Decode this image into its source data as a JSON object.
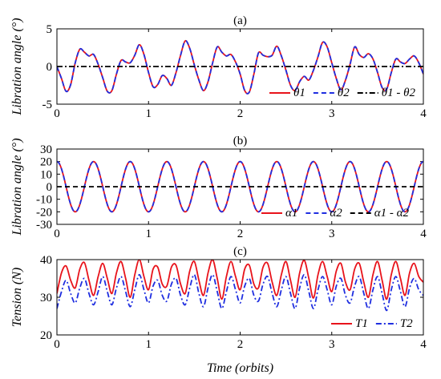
{
  "chart_data": [
    {
      "type": "line",
      "title": "(a)",
      "xlabel": "",
      "ylabel": "Libration angle (°)",
      "xlim": [
        0,
        4
      ],
      "ylim": [
        -5,
        5
      ],
      "xticks": [
        "0",
        "1",
        "2",
        "3",
        "4"
      ],
      "yticks": [
        "-5",
        "0",
        "5"
      ],
      "legend_position": "bottom-right",
      "series": [
        {
          "name": "θ1",
          "color": "#e8131b",
          "style": "solid",
          "x": [
            0,
            0.05,
            0.1,
            0.15,
            0.2,
            0.25,
            0.3,
            0.35,
            0.4,
            0.45,
            0.5,
            0.55,
            0.6,
            0.65,
            0.7,
            0.75,
            0.8,
            0.85,
            0.9,
            0.95,
            1.0,
            1.05,
            1.1,
            1.15,
            1.2,
            1.25,
            1.3,
            1.35,
            1.4,
            1.45,
            1.5,
            1.55,
            1.6,
            1.65,
            1.7,
            1.75,
            1.8,
            1.85,
            1.9,
            1.95,
            2.0,
            2.05,
            2.1,
            2.15,
            2.2,
            2.25,
            2.3,
            2.35,
            2.4,
            2.45,
            2.5,
            2.55,
            2.6,
            2.65,
            2.7,
            2.75,
            2.8,
            2.85,
            2.9,
            2.95,
            3.0,
            3.05,
            3.1,
            3.15,
            3.2,
            3.25,
            3.3,
            3.35,
            3.4,
            3.45,
            3.5,
            3.55,
            3.6,
            3.65,
            3.7,
            3.75,
            3.8,
            3.85,
            3.9,
            3.95,
            4.0
          ],
          "y": [
            0,
            -1.6,
            -3.3,
            -2.4,
            0.5,
            2.3,
            1.9,
            1.4,
            1.6,
            0.3,
            -1.5,
            -3.3,
            -3.2,
            -1.0,
            0.8,
            0.6,
            0.5,
            1.5,
            2.9,
            1.6,
            -0.8,
            -2.7,
            -2.4,
            -1.2,
            -1.6,
            -2.5,
            -0.8,
            1.5,
            3.4,
            2.4,
            0.2,
            -1.8,
            -3.2,
            -2.0,
            0.5,
            2.6,
            1.9,
            1.4,
            1.6,
            0.6,
            -1.0,
            -3.2,
            -3.4,
            -1.0,
            1.8,
            1.5,
            1.3,
            1.5,
            2.7,
            1.4,
            -0.5,
            -2.5,
            -3.2,
            -2.0,
            -1.3,
            -1.8,
            -0.5,
            1.3,
            3.2,
            2.6,
            0.5,
            -1.6,
            -3.1,
            -1.8,
            0.3,
            2.6,
            1.6,
            1.2,
            1.7,
            1.0,
            -0.8,
            -2.8,
            -3.0,
            -0.8,
            1.0,
            0.6,
            0.4,
            1.0,
            1.4,
            0.5,
            -1.0
          ]
        },
        {
          "name": "θ2",
          "color": "#1f2ee0",
          "style": "dashed",
          "same_values_as": "θ1"
        },
        {
          "name": "θ1 - θ2",
          "color": "#000000",
          "style": "dash-dot",
          "x": [
            0,
            4
          ],
          "y": [
            0,
            0
          ]
        }
      ]
    },
    {
      "type": "line",
      "title": "(b)",
      "xlabel": "",
      "ylabel": "Libration angle (°)",
      "xlim": [
        0,
        4
      ],
      "ylim": [
        -30,
        30
      ],
      "xticks": [
        "0",
        "1",
        "2",
        "3",
        "4"
      ],
      "yticks": [
        "-30",
        "-20",
        "-10",
        "0",
        "10",
        "20",
        "30"
      ],
      "legend_position": "bottom-right",
      "series": [
        {
          "name": "α1",
          "color": "#e8131b",
          "style": "solid",
          "amplitude": 20,
          "initial_value": 20,
          "period_orbits": 0.4,
          "note_values": "cosine oscillation between -20 and 20, peaks at x = 0, 0.4, 0.8, ..., 3.6"
        },
        {
          "name": "α2",
          "color": "#1f2ee0",
          "style": "dashed",
          "same_values_as": "α1"
        },
        {
          "name": "α1 - α2",
          "color": "#000000",
          "style": "dashed",
          "x": [
            0,
            4
          ],
          "y": [
            0,
            0
          ]
        }
      ]
    },
    {
      "type": "line",
      "title": "(c)",
      "xlabel": "Time (orbits)",
      "ylabel": "Tension (N)",
      "xlim": [
        0,
        4
      ],
      "ylim": [
        20,
        40
      ],
      "xticks": [
        "0",
        "1",
        "2",
        "3",
        "4"
      ],
      "yticks": [
        "20",
        "30",
        "40"
      ],
      "legend_position": "bottom-right",
      "series": [
        {
          "name": "T1",
          "color": "#e8131b",
          "style": "solid",
          "x": [
            0,
            0.05,
            0.1,
            0.15,
            0.2,
            0.25,
            0.3,
            0.35,
            0.4,
            0.45,
            0.5,
            0.55,
            0.6,
            0.65,
            0.7,
            0.75,
            0.8,
            0.85,
            0.9,
            0.95,
            1.0,
            1.05,
            1.1,
            1.15,
            1.2,
            1.25,
            1.3,
            1.35,
            1.4,
            1.45,
            1.5,
            1.55,
            1.6,
            1.65,
            1.7,
            1.75,
            1.8,
            1.85,
            1.9,
            1.95,
            2.0,
            2.05,
            2.1,
            2.15,
            2.2,
            2.25,
            2.3,
            2.35,
            2.4,
            2.45,
            2.5,
            2.55,
            2.6,
            2.65,
            2.7,
            2.75,
            2.8,
            2.85,
            2.9,
            2.95,
            3.0,
            3.05,
            3.1,
            3.15,
            3.2,
            3.25,
            3.3,
            3.35,
            3.4,
            3.45,
            3.5,
            3.55,
            3.6,
            3.65,
            3.7,
            3.75,
            3.8,
            3.85,
            3.9,
            3.95,
            4.0
          ],
          "y": [
            31,
            36.5,
            38.3,
            34.5,
            32.5,
            37.5,
            39.2,
            34.5,
            30.5,
            35.5,
            39.0,
            35.0,
            31.0,
            36.5,
            39.5,
            35.0,
            30.0,
            36.0,
            40.0,
            35.5,
            32.0,
            37.5,
            38.0,
            33.5,
            33.0,
            38.0,
            38.5,
            33.5,
            31.0,
            37.0,
            39.5,
            34.5,
            30.5,
            36.5,
            40.0,
            35.0,
            29.5,
            35.5,
            39.5,
            35.5,
            32.0,
            37.5,
            38.5,
            33.5,
            32.5,
            38.0,
            39.0,
            34.0,
            30.5,
            36.0,
            39.5,
            34.5,
            30.0,
            36.5,
            39.8,
            35.0,
            29.8,
            36.0,
            39.5,
            35.5,
            31.5,
            37.0,
            39.0,
            34.0,
            32.0,
            37.5,
            39.0,
            34.0,
            30.0,
            36.0,
            39.5,
            34.5,
            29.5,
            36.0,
            39.5,
            35.0,
            30.5,
            36.5,
            39.0,
            35.5,
            34.0
          ]
        },
        {
          "name": "T2",
          "color": "#1f2ee0",
          "style": "dash-dot",
          "x": [
            0,
            0.05,
            0.1,
            0.15,
            0.2,
            0.25,
            0.3,
            0.35,
            0.4,
            0.45,
            0.5,
            0.55,
            0.6,
            0.65,
            0.7,
            0.75,
            0.8,
            0.85,
            0.9,
            0.95,
            1.0,
            1.05,
            1.1,
            1.15,
            1.2,
            1.25,
            1.3,
            1.35,
            1.4,
            1.45,
            1.5,
            1.55,
            1.6,
            1.65,
            1.7,
            1.75,
            1.8,
            1.85,
            1.9,
            1.95,
            2.0,
            2.05,
            2.1,
            2.15,
            2.2,
            2.25,
            2.3,
            2.35,
            2.4,
            2.45,
            2.5,
            2.55,
            2.6,
            2.65,
            2.7,
            2.75,
            2.8,
            2.85,
            2.9,
            2.95,
            3.0,
            3.05,
            3.1,
            3.15,
            3.2,
            3.25,
            3.3,
            3.35,
            3.4,
            3.45,
            3.5,
            3.55,
            3.6,
            3.65,
            3.7,
            3.75,
            3.8,
            3.85,
            3.9,
            3.95,
            4.0
          ],
          "y": [
            27,
            31.5,
            34.5,
            31.0,
            28.5,
            32.5,
            35.0,
            31.0,
            28.0,
            31.5,
            35.5,
            31.5,
            28.0,
            32.5,
            35.5,
            31.5,
            27.5,
            32.0,
            36.0,
            32.0,
            28.5,
            33.0,
            34.5,
            30.5,
            29.0,
            33.5,
            35.0,
            30.5,
            28.0,
            32.5,
            36.0,
            31.0,
            27.5,
            32.5,
            36.0,
            31.5,
            27.0,
            31.5,
            35.5,
            32.0,
            28.5,
            33.0,
            35.0,
            30.5,
            29.0,
            33.5,
            35.5,
            31.0,
            27.5,
            32.0,
            35.5,
            31.0,
            27.0,
            32.5,
            36.0,
            31.5,
            27.0,
            32.0,
            35.5,
            32.0,
            28.0,
            33.0,
            35.0,
            30.5,
            28.5,
            33.0,
            35.5,
            31.0,
            27.0,
            32.0,
            35.5,
            31.0,
            26.5,
            32.0,
            35.5,
            31.5,
            27.5,
            32.5,
            35.0,
            32.0,
            30.5
          ]
        }
      ]
    }
  ]
}
